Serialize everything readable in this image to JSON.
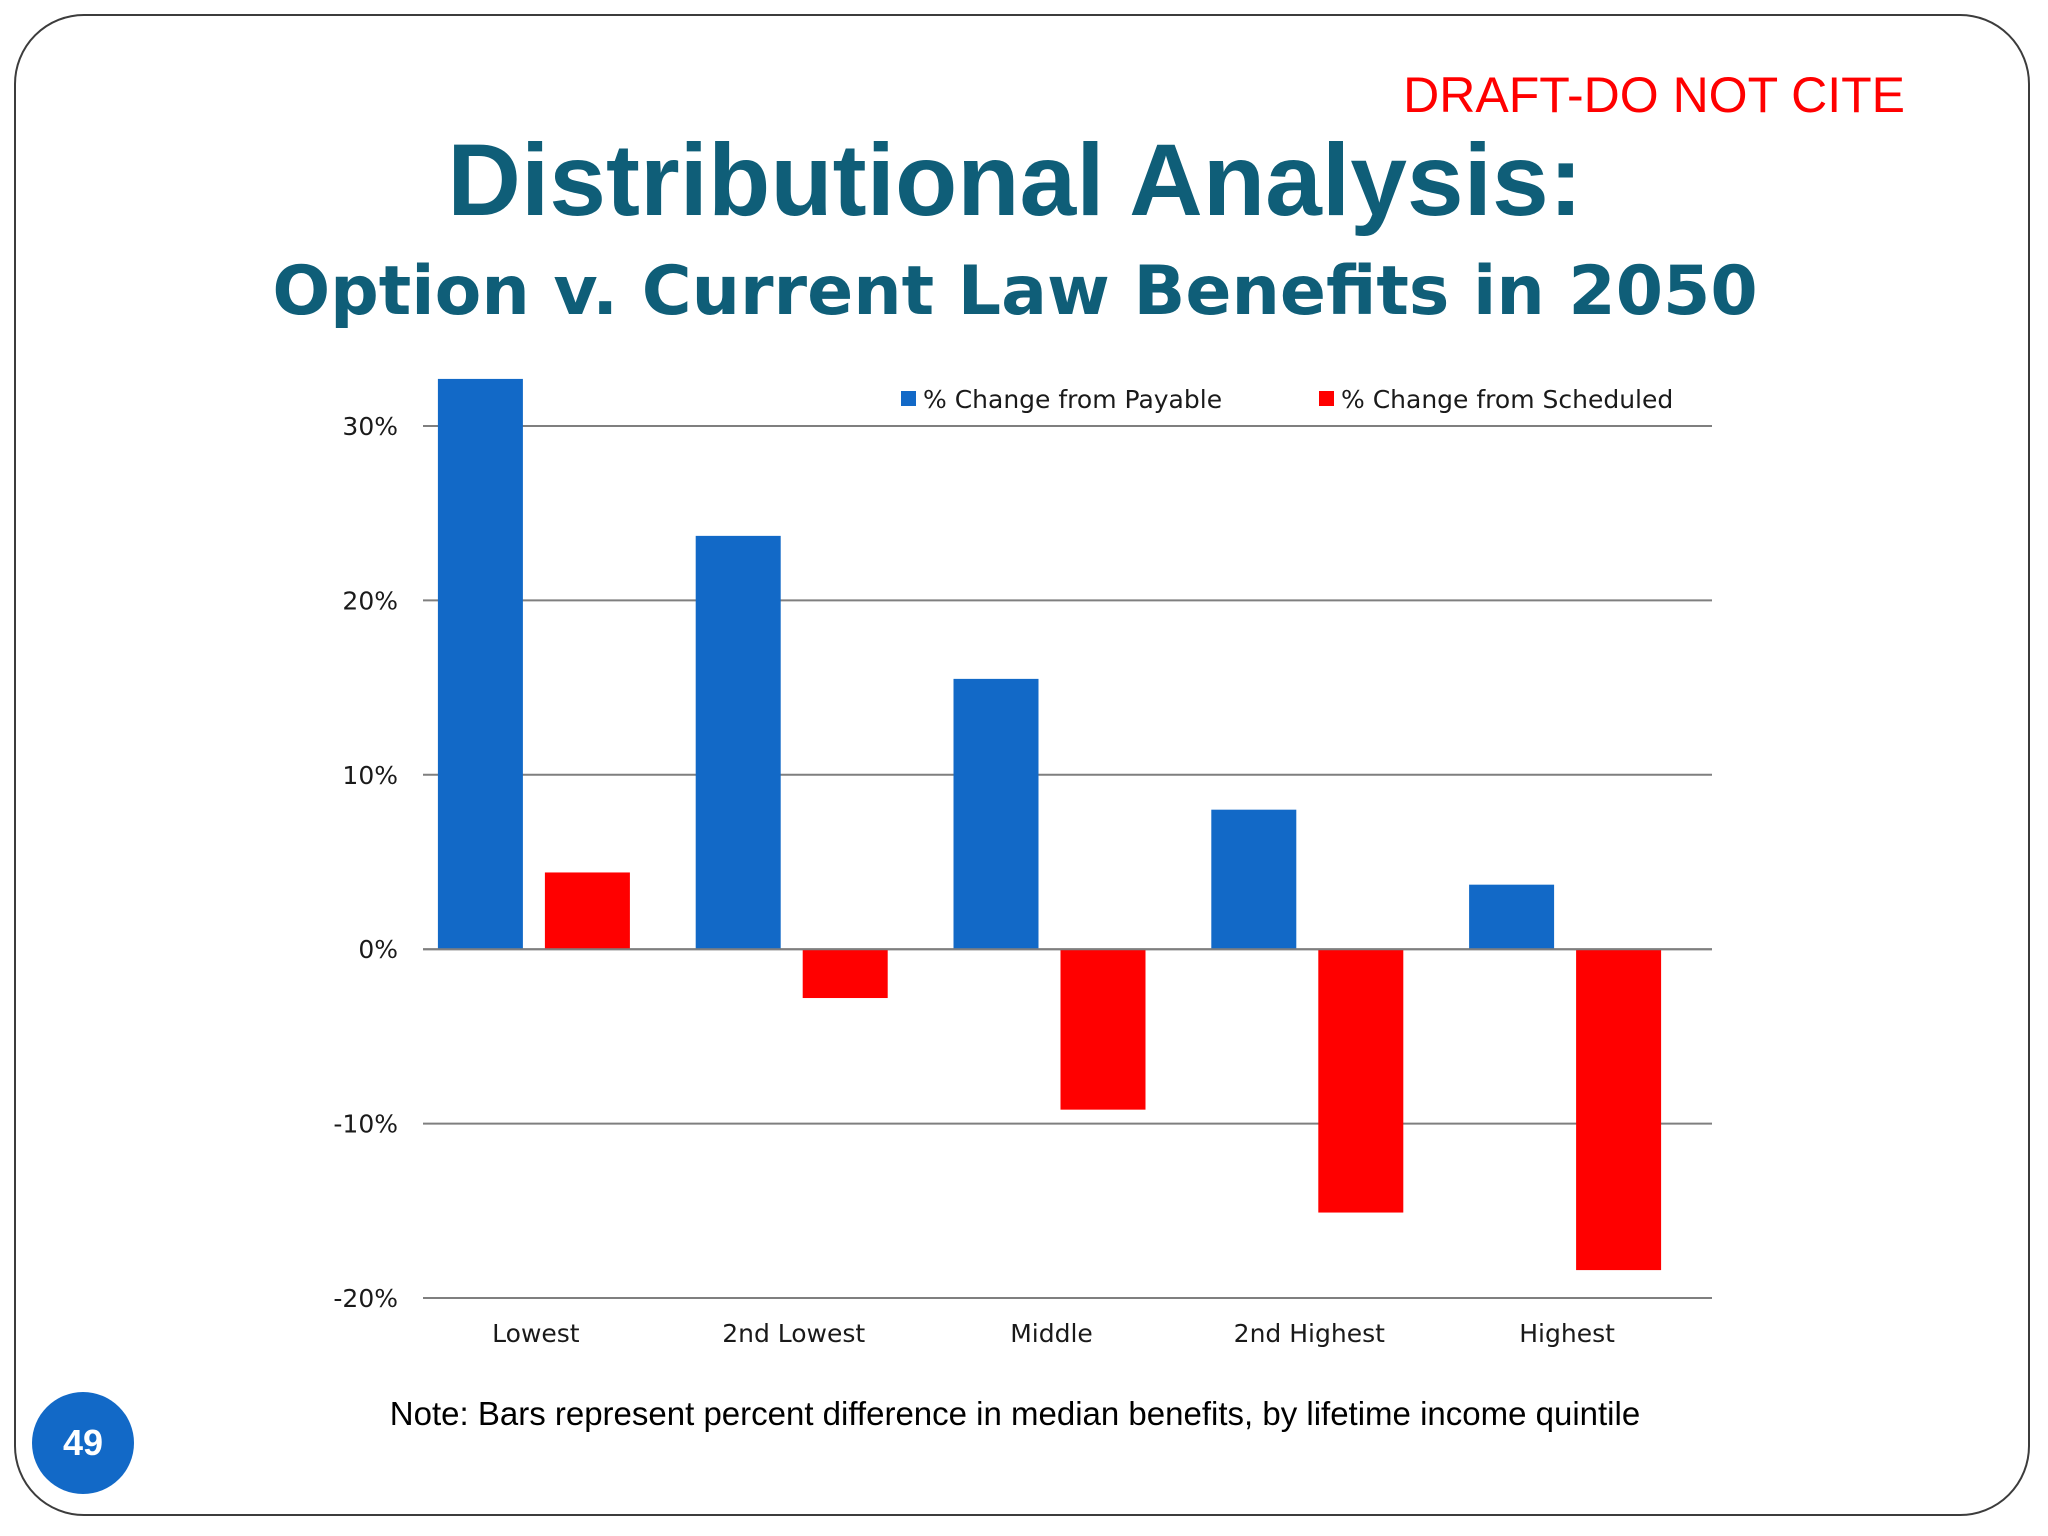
{
  "draft_label": "DRAFT-DO NOT CITE",
  "title": "Distributional Analysis:",
  "subtitle": "Option v. Current Law Benefits in 2050",
  "note": "Note: Bars represent percent difference in median benefits, by lifetime income quintile",
  "page_number": "49",
  "colors": {
    "title": "#0f5e78",
    "draft": "#ff0000",
    "payable": "#1269c7",
    "scheduled": "#ff0000",
    "badge": "#1269c7"
  },
  "chart_data": {
    "type": "bar",
    "categories": [
      "Lowest",
      "2nd Lowest",
      "Middle",
      "2nd Highest",
      "Highest"
    ],
    "series": [
      {
        "name": "% Change from Payable",
        "color": "#1269c7",
        "values": [
          32.7,
          23.7,
          15.5,
          8.0,
          3.7
        ]
      },
      {
        "name": "% Change from Scheduled",
        "color": "#ff0000",
        "values": [
          4.4,
          -2.8,
          -9.2,
          -15.1,
          -18.4
        ]
      }
    ],
    "ylim": [
      -20,
      30
    ],
    "yticks": [
      30,
      20,
      10,
      0,
      -10,
      -20
    ],
    "ytick_labels": [
      "30%",
      "20%",
      "10%",
      "0%",
      "-10%",
      "-20%"
    ],
    "grid": true,
    "legend_position": "top-right"
  }
}
